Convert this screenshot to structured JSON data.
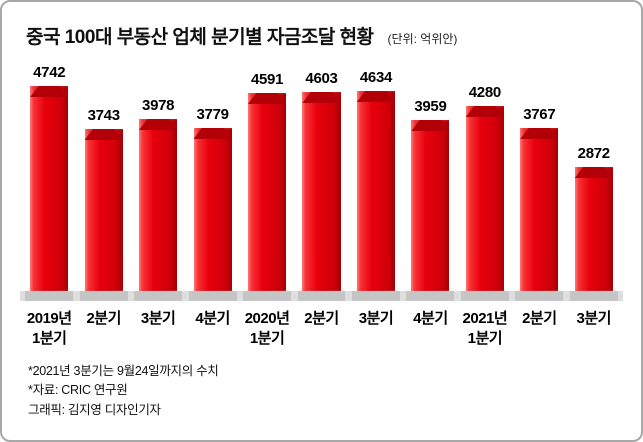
{
  "chart_data": {
    "type": "bar",
    "title": "중국 100대 부동산 업체 분기별 자금조달 현황",
    "unit_label": "(단위: 억위안)",
    "categories": [
      "2019년 1분기",
      "2분기",
      "3분기",
      "4분기",
      "2020년 1분기",
      "2분기",
      "3분기",
      "4분기",
      "2021년 1분기",
      "2분기",
      "3분기"
    ],
    "values": [
      4742,
      3743,
      3978,
      3779,
      4591,
      4603,
      4634,
      3959,
      4280,
      3767,
      2872
    ],
    "xlabel": "",
    "ylabel": "",
    "ylim": [
      0,
      4742
    ],
    "grid": false,
    "legend": "none",
    "bar_color": "#e8000d",
    "bar_color_light": "#ff4242",
    "bar_color_dark": "#c40008",
    "bar_cap_color": "#b30008",
    "baseline_color": "#dedede",
    "shadow_color": "#c5c5c5"
  },
  "footnotes": [
    "*2021년 3분기는 9월24일까지의 수치",
    "*자료: CRIC 연구원",
    "그래픽: 김지영 디자인기자"
  ]
}
